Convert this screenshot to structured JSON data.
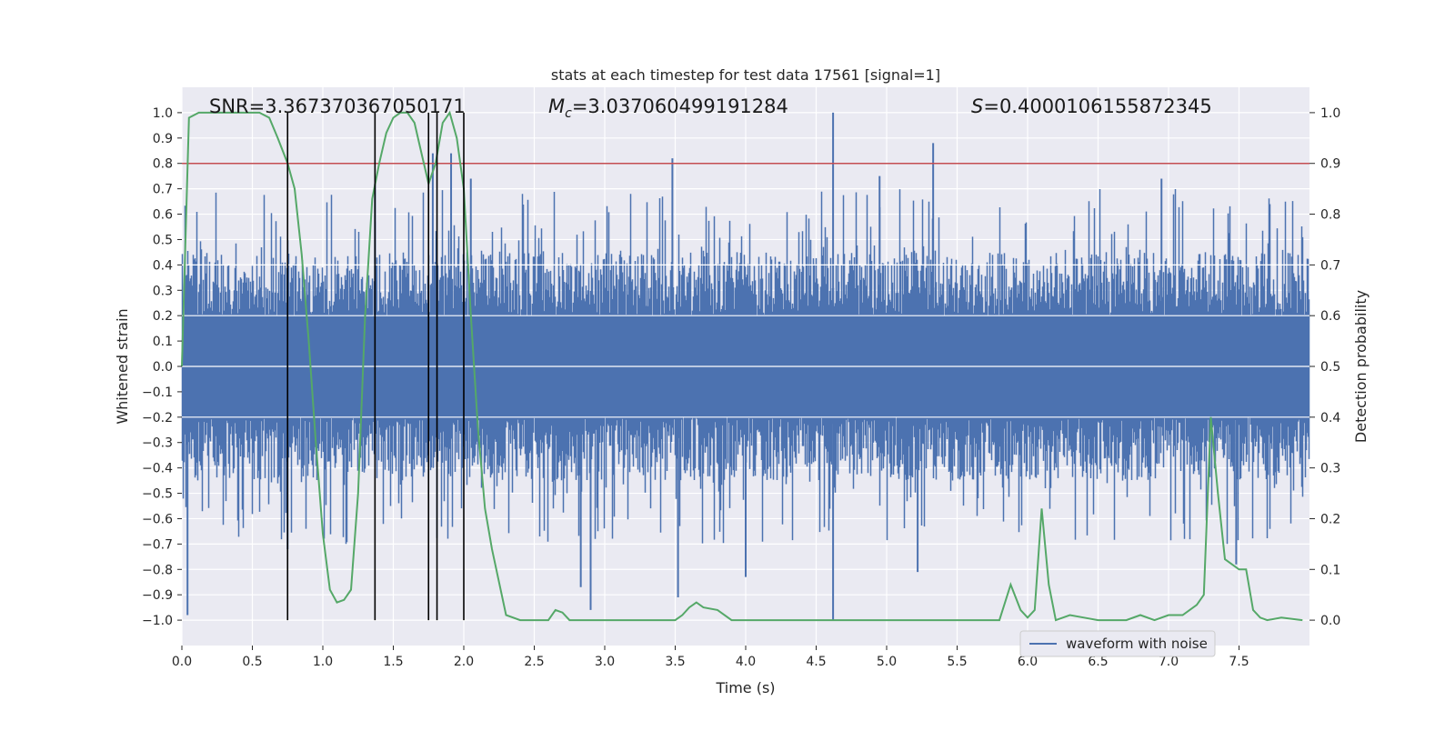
{
  "chart_data": {
    "type": "line",
    "title": "stats at each timestep for test data 17561 [signal=1]",
    "xlabel": "Time (s)",
    "ylabel_left": "Whitened strain",
    "ylabel_right": "Detection probability",
    "xlim": [
      0.0,
      8.0
    ],
    "ylim_left": [
      -1.1,
      1.1
    ],
    "ylim_right": [
      -0.05,
      1.05
    ],
    "x_ticks": [
      0.0,
      0.5,
      1.0,
      1.5,
      2.0,
      2.5,
      3.0,
      3.5,
      4.0,
      4.5,
      5.0,
      5.5,
      6.0,
      6.5,
      7.0,
      7.5
    ],
    "x_tick_labels": [
      "0.0",
      "0.5",
      "1.0",
      "1.5",
      "2.0",
      "2.5",
      "3.0",
      "3.5",
      "4.0",
      "4.5",
      "5.0",
      "5.5",
      "6.0",
      "6.5",
      "7.0",
      "7.5"
    ],
    "y_left_ticks": [
      1.0,
      0.9,
      0.8,
      0.7,
      0.6,
      0.5,
      0.4,
      0.3,
      0.2,
      0.1,
      0.0,
      -0.1,
      -0.2,
      -0.3,
      -0.4,
      -0.5,
      -0.6,
      -0.7,
      -0.8,
      -0.9,
      -1.0
    ],
    "y_left_tick_labels": [
      "1.0",
      "0.9",
      "0.8",
      "0.7",
      "0.6",
      "0.5",
      "0.4",
      "0.3",
      "0.2",
      "0.1",
      "0.0",
      "−0.1",
      "−0.2",
      "−0.3",
      "−0.4",
      "−0.5",
      "−0.6",
      "−0.7",
      "−0.8",
      "−0.9",
      "−1.0"
    ],
    "y_right_ticks": [
      1.0,
      0.9,
      0.8,
      0.7,
      0.6,
      0.5,
      0.4,
      0.3,
      0.2,
      0.1,
      0.0
    ],
    "y_right_tick_labels": [
      "1.0",
      "0.9",
      "0.8",
      "0.7",
      "0.6",
      "0.5",
      "0.4",
      "0.3",
      "0.2",
      "0.1",
      "0.0"
    ],
    "threshold": {
      "axis": "right",
      "value": 0.9,
      "color": "#c44e52"
    },
    "vertical_markers": {
      "x": [
        0.75,
        1.37,
        1.75,
        1.81,
        2.0
      ],
      "y_range": [
        -1.0,
        1.0
      ],
      "color": "#000000"
    },
    "stats": {
      "snr": "SNR=3.367370367050171",
      "mc_symbol": "M",
      "mc_sub": "c",
      "mc_value": "=3.037060499191284",
      "s_symbol": "S",
      "s_value": "=0.4000106155872345"
    },
    "legend": {
      "label": "waveform with noise",
      "placement": "lower-right"
    },
    "series": [
      {
        "name": "waveform with noise",
        "axis": "left",
        "color": "#4c72b0",
        "kind": "dense-noise",
        "x_range": [
          0.0,
          8.0
        ],
        "core_amplitude": 0.2,
        "typical_peak": 0.45,
        "peaks": [
          {
            "x": 0.04,
            "y": -0.98
          },
          {
            "x": 0.75,
            "y": -0.72
          },
          {
            "x": 1.37,
            "y": 0.72
          },
          {
            "x": 1.78,
            "y": 0.84
          },
          {
            "x": 1.91,
            "y": 0.84
          },
          {
            "x": 2.05,
            "y": 0.74
          },
          {
            "x": 2.83,
            "y": -0.87
          },
          {
            "x": 2.9,
            "y": -0.96
          },
          {
            "x": 3.48,
            "y": 0.82
          },
          {
            "x": 3.52,
            "y": -0.91
          },
          {
            "x": 4.0,
            "y": -0.83
          },
          {
            "x": 4.62,
            "y": 1.0
          },
          {
            "x": 4.62,
            "y": -1.0
          },
          {
            "x": 5.33,
            "y": 0.88
          },
          {
            "x": 5.22,
            "y": -0.81
          },
          {
            "x": 7.48,
            "y": -0.78
          },
          {
            "x": 4.95,
            "y": 0.75
          },
          {
            "x": 6.95,
            "y": 0.74
          }
        ]
      },
      {
        "name": "detection probability",
        "axis": "right",
        "color": "#55a868",
        "x": [
          0.0,
          0.05,
          0.12,
          0.25,
          0.4,
          0.55,
          0.62,
          0.68,
          0.75,
          0.8,
          0.85,
          0.9,
          0.95,
          1.0,
          1.05,
          1.1,
          1.15,
          1.2,
          1.25,
          1.3,
          1.35,
          1.4,
          1.45,
          1.5,
          1.55,
          1.6,
          1.65,
          1.7,
          1.75,
          1.8,
          1.85,
          1.9,
          1.95,
          2.0,
          2.05,
          2.1,
          2.15,
          2.2,
          2.3,
          2.4,
          2.5,
          2.6,
          2.65,
          2.7,
          2.75,
          2.8,
          2.85,
          2.9,
          3.0,
          3.1,
          3.3,
          3.5,
          3.55,
          3.6,
          3.65,
          3.7,
          3.8,
          3.9,
          4.0,
          4.2,
          4.4,
          4.6,
          4.8,
          5.0,
          5.2,
          5.4,
          5.6,
          5.8,
          5.88,
          5.95,
          6.0,
          6.05,
          6.1,
          6.15,
          6.2,
          6.25,
          6.3,
          6.4,
          6.5,
          6.6,
          6.7,
          6.8,
          6.9,
          7.0,
          7.1,
          7.2,
          7.25,
          7.3,
          7.35,
          7.4,
          7.5,
          7.55,
          7.6,
          7.65,
          7.7,
          7.8,
          7.95
        ],
        "y": [
          0.5,
          0.99,
          1.0,
          1.0,
          1.0,
          1.0,
          0.99,
          0.95,
          0.9,
          0.85,
          0.72,
          0.55,
          0.35,
          0.17,
          0.06,
          0.035,
          0.04,
          0.06,
          0.25,
          0.6,
          0.83,
          0.9,
          0.96,
          0.99,
          1.0,
          1.0,
          0.98,
          0.92,
          0.86,
          0.9,
          0.98,
          1.0,
          0.95,
          0.85,
          0.6,
          0.38,
          0.22,
          0.14,
          0.01,
          0.0,
          0.0,
          0.0,
          0.02,
          0.015,
          0.0,
          0.0,
          0.0,
          0.0,
          0.0,
          0.0,
          0.0,
          0.0,
          0.01,
          0.025,
          0.035,
          0.025,
          0.02,
          0.0,
          0.0,
          0.0,
          0.0,
          0.0,
          0.0,
          0.0,
          0.0,
          0.0,
          0.0,
          0.0,
          0.07,
          0.02,
          0.005,
          0.02,
          0.22,
          0.07,
          0.0,
          0.005,
          0.01,
          0.005,
          0.0,
          0.0,
          0.0,
          0.01,
          0.0,
          0.01,
          0.01,
          0.03,
          0.05,
          0.4,
          0.25,
          0.12,
          0.1,
          0.1,
          0.02,
          0.005,
          0.0,
          0.005,
          0.0
        ]
      }
    ]
  }
}
